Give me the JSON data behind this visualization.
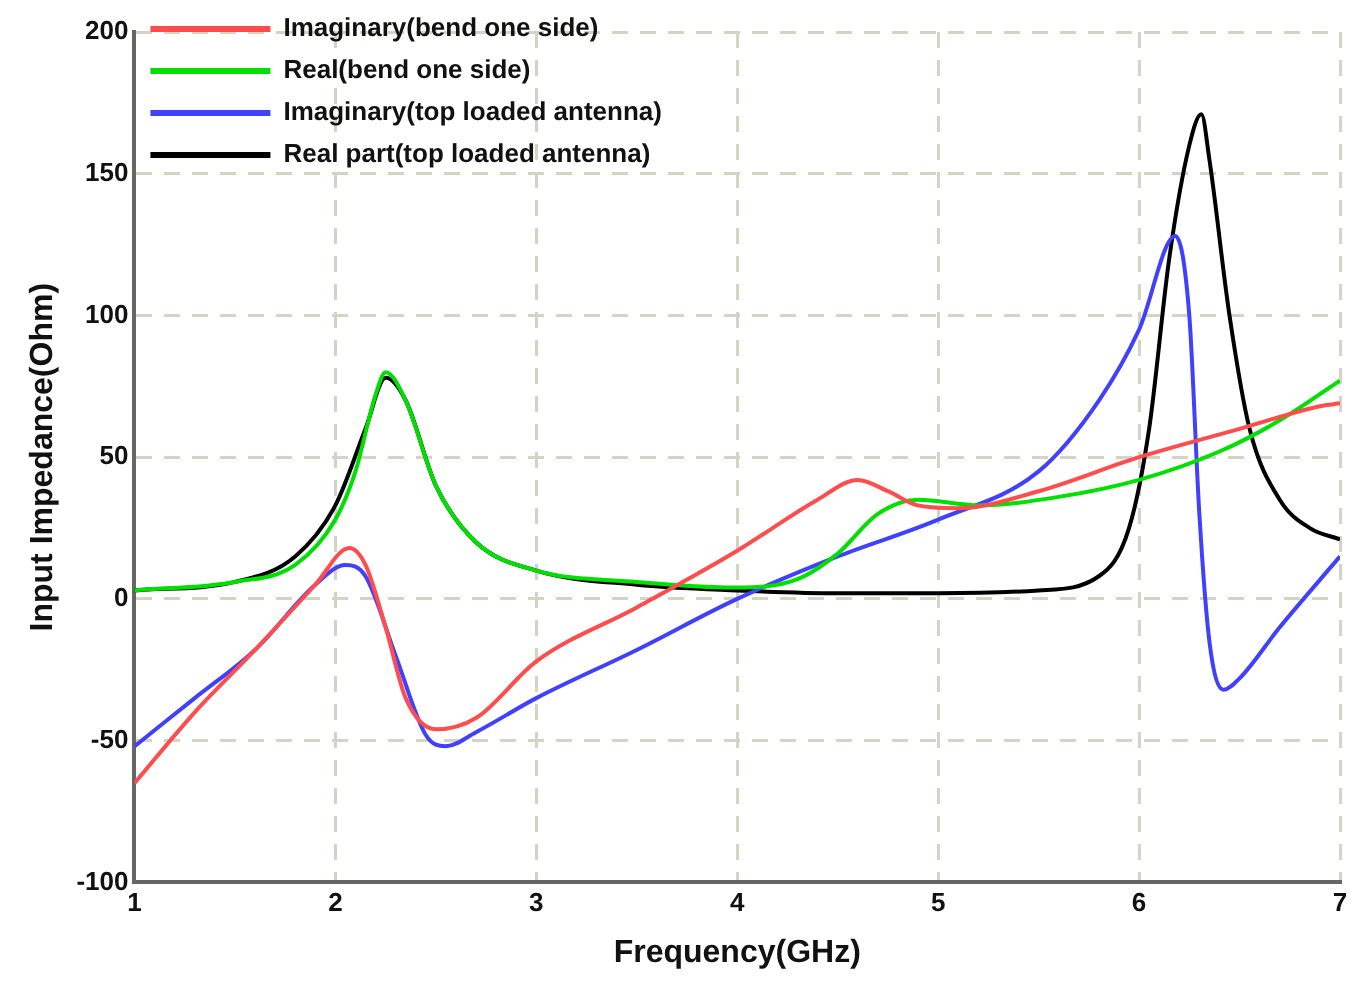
{
  "chart_data": {
    "type": "line",
    "xlabel": "Frequency(GHz)",
    "ylabel": "Input Impedance(Ohm)",
    "xlim": [
      1,
      7
    ],
    "xticks": [
      1,
      2,
      3,
      4,
      5,
      6,
      7
    ],
    "ylim": [
      -100,
      200
    ],
    "yticks": [
      -100,
      -50,
      0,
      50,
      100,
      150,
      200
    ],
    "grid": true,
    "legend": "top left",
    "marker": "none",
    "line_style": "solid",
    "series": [
      {
        "name": "Imaginary(bend one side)",
        "color": "#ff4d4d",
        "x": [
          1,
          1.3,
          1.6,
          1.9,
          2.07,
          2.15,
          2.25,
          2.35,
          2.5,
          2.7,
          3,
          3.5,
          4,
          4.4,
          4.6,
          4.75,
          4.9,
          5.1,
          5.5,
          6,
          6.5,
          6.9,
          7
        ],
        "values": [
          -65,
          -40,
          -18,
          5,
          18,
          12,
          -10,
          -35,
          -46,
          -42,
          -22,
          -3,
          17,
          35,
          42,
          38,
          33,
          32,
          38,
          50,
          60,
          68,
          69
        ]
      },
      {
        "name": "Real(bend one side)",
        "color": "#00e000",
        "x": [
          1,
          1.5,
          1.8,
          2,
          2.1,
          2.2,
          2.25,
          2.35,
          2.5,
          2.7,
          3,
          3.5,
          4,
          4.3,
          4.5,
          4.7,
          4.9,
          5.2,
          5.6,
          6,
          6.4,
          6.7,
          7
        ],
        "values": [
          3,
          6,
          12,
          28,
          45,
          72,
          80,
          70,
          40,
          20,
          10,
          6,
          4,
          7,
          16,
          30,
          35,
          33,
          36,
          42,
          52,
          63,
          77
        ]
      },
      {
        "name": "Imaginary(top loaded antenna)",
        "color": "#4040ff",
        "x": [
          1,
          1.3,
          1.6,
          1.9,
          2.05,
          2.15,
          2.3,
          2.45,
          2.55,
          2.7,
          3,
          3.5,
          4,
          4.5,
          5,
          5.5,
          5.8,
          6,
          6.18,
          6.25,
          6.3,
          6.35,
          6.42,
          6.5,
          6.7,
          7
        ],
        "values": [
          -52,
          -35,
          -18,
          5,
          12,
          8,
          -20,
          -48,
          -52,
          -47,
          -35,
          -18,
          0,
          15,
          28,
          45,
          70,
          95,
          128,
          100,
          30,
          -15,
          -32,
          -28,
          -10,
          15
        ]
      },
      {
        "name": "Real part(top loaded antenna)",
        "color": "#000000",
        "x": [
          1,
          1.5,
          1.8,
          2,
          2.15,
          2.25,
          2.35,
          2.5,
          2.7,
          3,
          3.5,
          4,
          4.5,
          5,
          5.5,
          5.8,
          5.95,
          6.05,
          6.15,
          6.25,
          6.31,
          6.35,
          6.45,
          6.55,
          6.7,
          6.85,
          7
        ],
        "values": [
          3,
          6,
          15,
          33,
          60,
          78,
          70,
          40,
          20,
          10,
          5,
          3,
          2,
          2,
          3,
          8,
          25,
          60,
          120,
          160,
          171,
          155,
          100,
          60,
          35,
          25,
          21
        ]
      }
    ]
  }
}
